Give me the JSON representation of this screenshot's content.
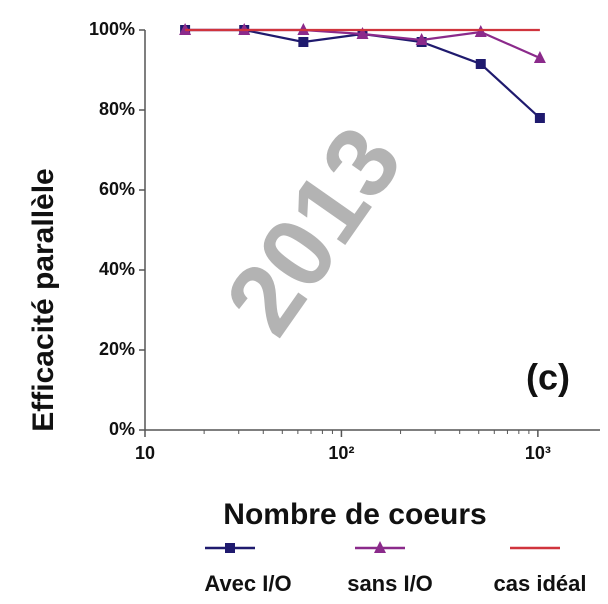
{
  "chart_data": {
    "type": "line",
    "ylabel": "Efficacité parallèle",
    "xlabel": "Nombre de coeurs",
    "annotations": [
      "(c)",
      "2013"
    ],
    "x": [
      16,
      32,
      64,
      128,
      256,
      512,
      1024
    ],
    "xscale": "log",
    "xlim": [
      10,
      2000
    ],
    "xticks": [
      10,
      {
        "value": 100,
        "label": "10²"
      },
      {
        "value": 1000,
        "label": "10³"
      }
    ],
    "xminorticks": [
      20,
      30,
      40,
      50,
      60,
      70,
      80,
      90,
      200,
      300,
      400,
      500,
      600,
      700,
      800,
      900
    ],
    "ylim": [
      0,
      100
    ],
    "yticks": [
      {
        "value": 0,
        "label": "0%"
      },
      {
        "value": 20,
        "label": "20%"
      },
      {
        "value": 40,
        "label": "40%"
      },
      {
        "value": 60,
        "label": "60%"
      },
      {
        "value": 80,
        "label": "80%"
      },
      {
        "value": 100,
        "label": "100%"
      }
    ],
    "series": [
      {
        "name": "Avec I/O",
        "color": "#1f1a6e",
        "marker": "square",
        "values": [
          100,
          100,
          97,
          99,
          97,
          91.5,
          78
        ]
      },
      {
        "name": "sans I/O",
        "color": "#8b2a8b",
        "marker": "triangle",
        "values": [
          100,
          100,
          100,
          99,
          97.5,
          99.5,
          93
        ]
      },
      {
        "name": "cas idéal",
        "color": "#d0343d",
        "marker": null,
        "values": [
          100,
          100,
          100,
          100,
          100,
          100,
          100
        ]
      }
    ]
  }
}
